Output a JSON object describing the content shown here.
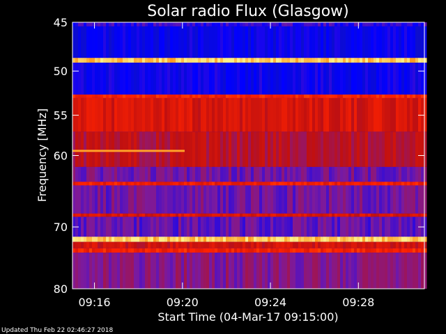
{
  "chart_data": {
    "type": "heatmap",
    "title": "Solar radio Flux (Glasgow)",
    "ylabel": "Frequency [MHz]",
    "xlabel": "Start Time (04-Mar-17 09:15:00)",
    "y_scale": "log",
    "ylim": [
      45,
      80
    ],
    "y_ticks": [
      45,
      50,
      55,
      60,
      70,
      80
    ],
    "x_range_minutes": [
      0,
      16
    ],
    "x_ticks": [
      {
        "minute": 1,
        "label": "09:16"
      },
      {
        "minute": 5,
        "label": "09:20"
      },
      {
        "minute": 9,
        "label": "09:24"
      },
      {
        "minute": 13,
        "label": "09:28"
      }
    ],
    "colormap": [
      "#000033",
      "#1a1aa0",
      "#0000ff",
      "#7a1aa0",
      "#c01010",
      "#ff2200",
      "#ff8000",
      "#ffee88"
    ],
    "frequency_bands": [
      {
        "from": 45,
        "to": 45.4,
        "level": 0.35
      },
      {
        "from": 45.4,
        "to": 48.6,
        "level": 0.27
      },
      {
        "from": 48.6,
        "to": 49.1,
        "level": 0.95
      },
      {
        "from": 49.1,
        "to": 52.6,
        "level": 0.28
      },
      {
        "from": 52.6,
        "to": 53.0,
        "level": 0.7
      },
      {
        "from": 53.0,
        "to": 57.0,
        "level": 0.62
      },
      {
        "from": 57.0,
        "to": 61.5,
        "level": 0.55
      },
      {
        "from": 61.5,
        "to": 63.5,
        "level": 0.42
      },
      {
        "from": 63.5,
        "to": 64.0,
        "level": 0.68
      },
      {
        "from": 64.0,
        "to": 68.0,
        "level": 0.42
      },
      {
        "from": 68.0,
        "to": 68.5,
        "level": 0.62
      },
      {
        "from": 68.5,
        "to": 71.5,
        "level": 0.4
      },
      {
        "from": 71.5,
        "to": 72.3,
        "level": 0.95
      },
      {
        "from": 72.3,
        "to": 73.3,
        "level": 0.6
      },
      {
        "from": 73.3,
        "to": 74.0,
        "level": 0.7
      },
      {
        "from": 74.0,
        "to": 80,
        "level": 0.45
      }
    ],
    "features": [
      {
        "kind": "line",
        "freq": 59.4,
        "from_minute": 0,
        "to_minute": 5.1,
        "level": 0.9
      }
    ]
  },
  "footer": {
    "updated": "Updated Thu Feb 22 02:46:27 2018"
  }
}
